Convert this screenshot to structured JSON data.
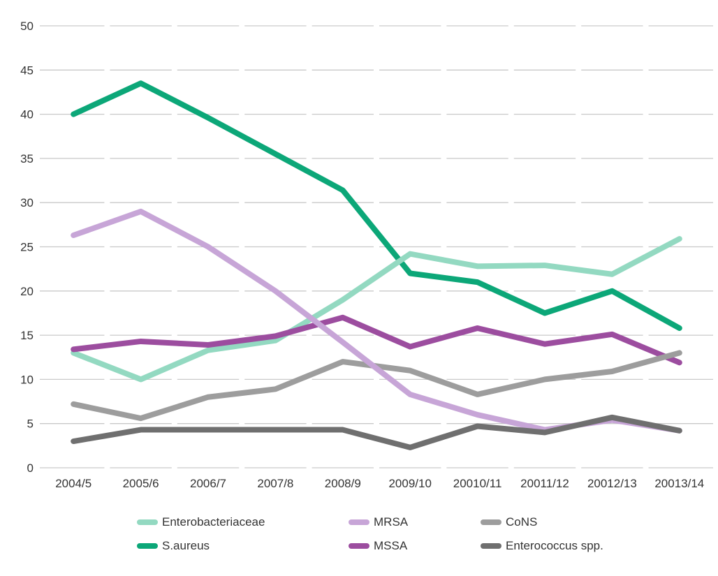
{
  "chart_data": {
    "type": "line",
    "title": "",
    "categories": [
      "2004/5",
      "2005/6",
      "2006/7",
      "2007/8",
      "2008/9",
      "2009/10",
      "20010/11",
      "20011/12",
      "20012/13",
      "20013/14"
    ],
    "series": [
      {
        "name": "Enterobacteriaceae",
        "color": "#93D9C1",
        "values": [
          13,
          10,
          13.3,
          14.4,
          19,
          24.2,
          22.8,
          22.9,
          21.9,
          25.9
        ]
      },
      {
        "name": "MRSA",
        "color": "#C7A5D7",
        "values": [
          26.3,
          29,
          25,
          20,
          14.2,
          8.3,
          6,
          4.3,
          5.4,
          4.2
        ]
      },
      {
        "name": "CoNS",
        "color": "#9D9D9D",
        "values": [
          7.2,
          5.6,
          8,
          8.9,
          12,
          11,
          8.3,
          10,
          10.9,
          13
        ]
      },
      {
        "name": "S.aureus",
        "color": "#0CA778",
        "values": [
          40,
          43.5,
          39.6,
          35.5,
          31.4,
          22,
          21,
          17.5,
          20,
          15.8
        ]
      },
      {
        "name": "MSSA",
        "color": "#9C4D9F",
        "values": [
          13.4,
          14.3,
          13.9,
          14.9,
          17,
          13.7,
          15.8,
          14,
          15.1,
          11.9
        ]
      },
      {
        "name": "Enterococcus spp.",
        "color": "#6F6F6F",
        "values": [
          3,
          4.3,
          4.3,
          4.3,
          4.3,
          2.3,
          4.7,
          4,
          5.7,
          4.2
        ]
      }
    ],
    "draw_order": [
      "S.aureus",
      "Enterobacteriaceae",
      "MSSA",
      "CoNS",
      "MRSA",
      "Enterococcus spp."
    ],
    "y_axis": {
      "min": 0,
      "max": 50,
      "step": 5,
      "tick_labels": [
        "0",
        "5",
        "10",
        "15",
        "20",
        "25",
        "30",
        "35",
        "40",
        "45",
        "50"
      ]
    },
    "x_axis": {
      "tick_labels": [
        "2004/5",
        "2005/6",
        "2006/7",
        "2007/8",
        "2008/9",
        "2009/10",
        "20010/11",
        "20011/12",
        "20012/13",
        "20013/14"
      ]
    },
    "grid": "horizontal-dashed",
    "legend": {
      "position": "bottom",
      "rows": [
        [
          "Enterobacteriaceae",
          "MRSA",
          "CoNS"
        ],
        [
          "S.aureus",
          "MSSA",
          "Enterococcus spp."
        ]
      ]
    },
    "colors": {
      "gridline": "#C9C9C9",
      "axis_text": "#333333",
      "background": "#FFFFFF"
    }
  }
}
